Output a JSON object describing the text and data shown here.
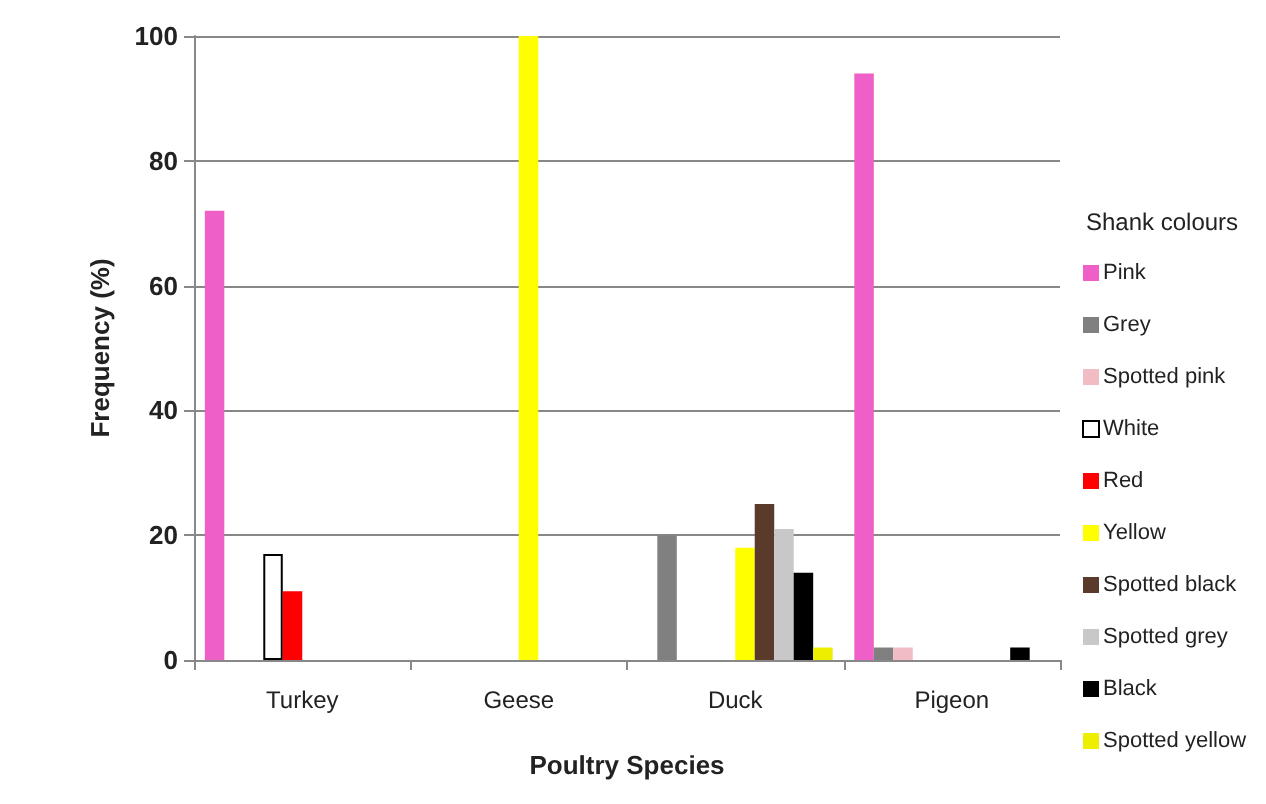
{
  "chart_data": {
    "type": "bar",
    "xlabel": "Poultry Species",
    "ylabel": "Frequency (%)",
    "legend_title": "Shank colours",
    "categories": [
      "Turkey",
      "Geese",
      "Duck",
      "Pigeon"
    ],
    "series": [
      {
        "name": "Pink",
        "color": "#ee5fc8",
        "values": [
          72,
          null,
          null,
          94
        ]
      },
      {
        "name": "Grey",
        "color": "#808080",
        "values": [
          null,
          null,
          20,
          2
        ]
      },
      {
        "name": "Spotted pink",
        "color": "#f2bcc4",
        "values": [
          null,
          null,
          null,
          2
        ]
      },
      {
        "name": "White",
        "color": "#ffffff",
        "values": [
          17,
          null,
          null,
          null
        ]
      },
      {
        "name": "Red",
        "color": "#ff0000",
        "values": [
          11,
          null,
          null,
          null
        ]
      },
      {
        "name": "Yellow",
        "color": "#ffff00",
        "values": [
          null,
          100,
          18,
          null
        ]
      },
      {
        "name": "Spotted black",
        "color": "#5a3a2a",
        "values": [
          null,
          null,
          25,
          null
        ]
      },
      {
        "name": "Spotted grey",
        "color": "#c8c8c8",
        "values": [
          null,
          null,
          21,
          null
        ]
      },
      {
        "name": "Black",
        "color": "#000000",
        "values": [
          null,
          null,
          14,
          2
        ]
      },
      {
        "name": "Spotted yellow",
        "color": "#eeee00",
        "values": [
          null,
          null,
          2,
          null
        ]
      }
    ],
    "ylim": [
      0,
      100
    ],
    "yticks": [
      0,
      20,
      40,
      60,
      80,
      100
    ],
    "grid": "y",
    "legend": "right"
  }
}
